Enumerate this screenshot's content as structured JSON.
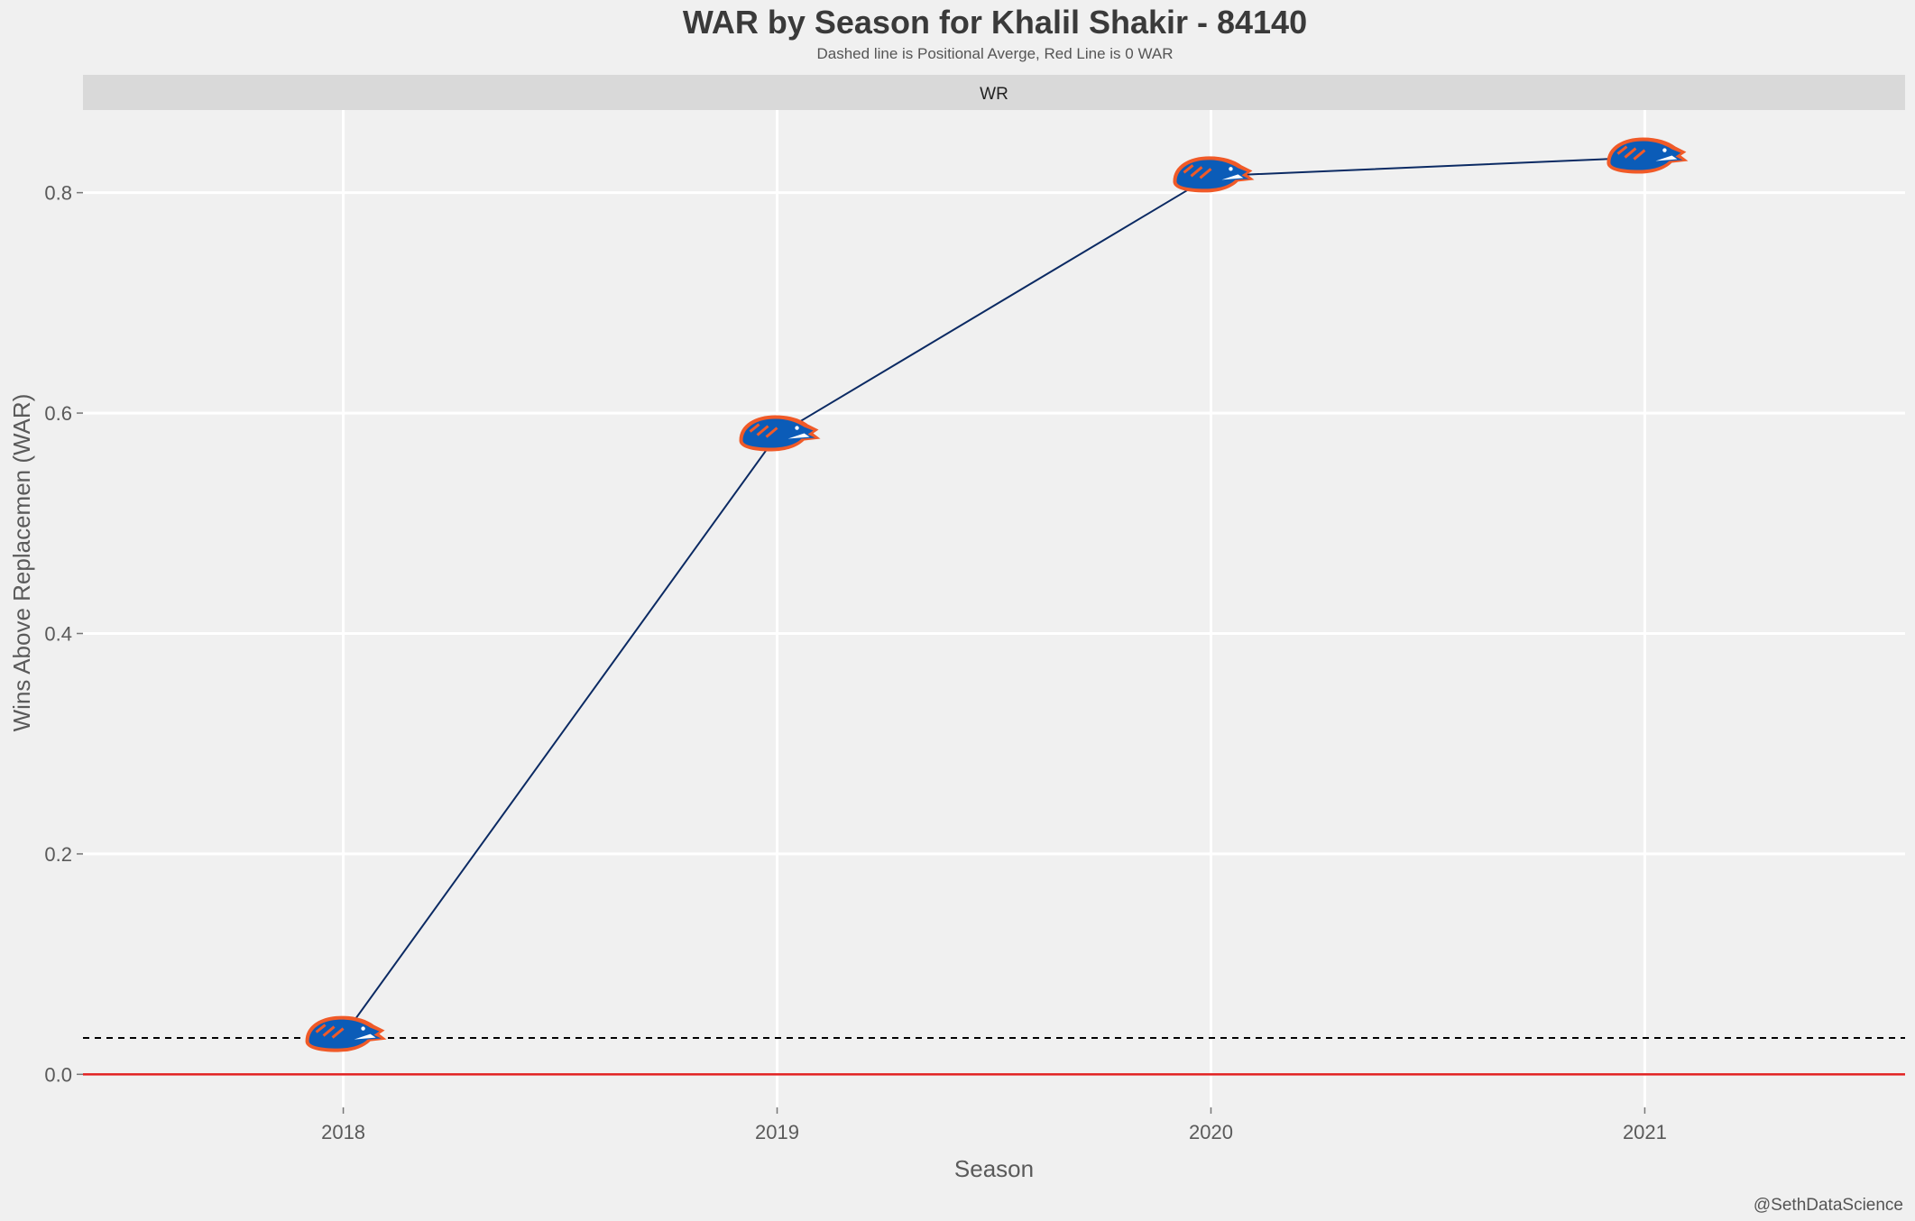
{
  "chart_data": {
    "type": "line",
    "title": "WAR by Season for Khalil Shakir - 84140",
    "subtitle": "Dashed line is Positional Averge, Red Line is 0 WAR",
    "facet_label": "WR",
    "xlabel": "Season",
    "ylabel": "Wins Above Replacemen (WAR)",
    "caption": "@SethDataScience",
    "x": [
      2018,
      2019,
      2020,
      2021
    ],
    "x_tick_labels": [
      "2018",
      "2019",
      "2020",
      "2021"
    ],
    "y_ticks": [
      0.0,
      0.2,
      0.4,
      0.6,
      0.8
    ],
    "y_tick_labels": [
      "0.0",
      "0.2",
      "0.4",
      "0.6",
      "0.8"
    ],
    "xlim": [
      2017.4,
      2021.6
    ],
    "ylim": [
      -0.03,
      0.875
    ],
    "grid": true,
    "legend": "none",
    "series": [
      {
        "values": [
          0.035,
          0.58,
          0.815,
          0.832
        ]
      }
    ],
    "reference_lines": {
      "positional_average": 0.033,
      "zero_line": 0.0
    },
    "point_marker": "boise-state-bronco-logo-icon",
    "colors": {
      "background": "#f0f0f0",
      "strip": "#d9d9d9",
      "grid": "#ffffff",
      "line": "#0b2a63",
      "zero_line": "#e02020",
      "average_line": "#000000",
      "logo_blue": "#0b5cb8",
      "logo_orange": "#f05a28"
    }
  }
}
